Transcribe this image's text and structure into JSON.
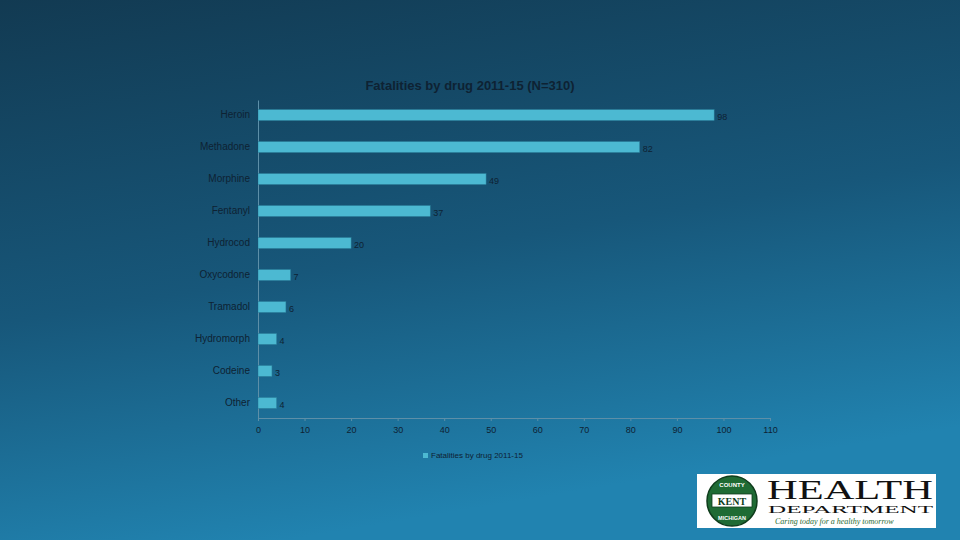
{
  "chart_data": {
    "type": "bar",
    "title": "Fatalities by drug 2011-15 (N=310)",
    "orientation": "horizontal",
    "categories": [
      "Heroin",
      "Methadone",
      "Morphine",
      "Fentanyl",
      "Hydrocod",
      "Oxycodone",
      "Tramadol",
      "Hydromorph",
      "Codeine",
      "Other"
    ],
    "series": [
      {
        "name": "Fatalities by drug 2011-15",
        "color": "#4cb9d2",
        "values": [
          98,
          82,
          49,
          37,
          20,
          7,
          6,
          4,
          3,
          4
        ]
      }
    ],
    "xlim": [
      0,
      110
    ],
    "xticks": [
      0,
      10,
      20,
      30,
      40,
      50,
      60,
      70,
      80,
      90,
      100,
      110
    ],
    "grid": false,
    "data_labels": true,
    "legend": "bottom",
    "annotations": [
      "COUNTY",
      "KENT",
      "MICHIGAN",
      "HEALTH",
      "DEPARTMENT",
      "Caring today for a healthy tomorrow"
    ]
  }
}
